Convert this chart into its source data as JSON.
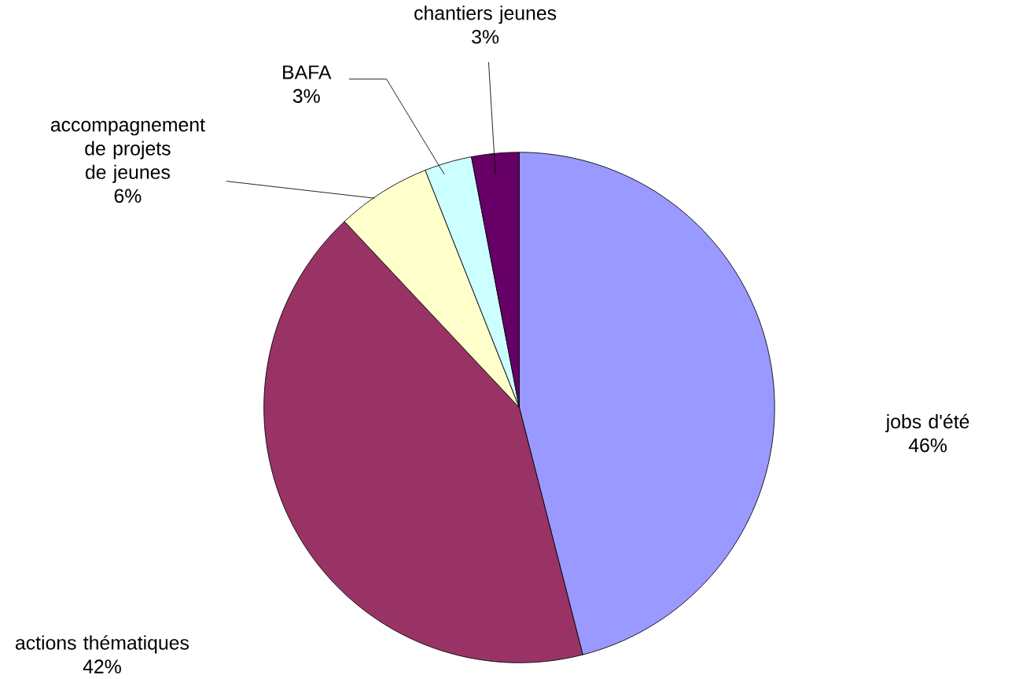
{
  "chart_data": {
    "type": "pie",
    "categories": [
      "jobs d'été",
      "actions thématiques",
      "accompagnement de projets de jeunes",
      "BAFA",
      "chantiers jeunes"
    ],
    "values": [
      46,
      42,
      6,
      3,
      3
    ],
    "value_labels": [
      "46%",
      "42%",
      "6%",
      "3%",
      "3%"
    ],
    "colors": [
      "#9999ff",
      "#993366",
      "#ffffcc",
      "#ccffff",
      "#660066"
    ]
  }
}
